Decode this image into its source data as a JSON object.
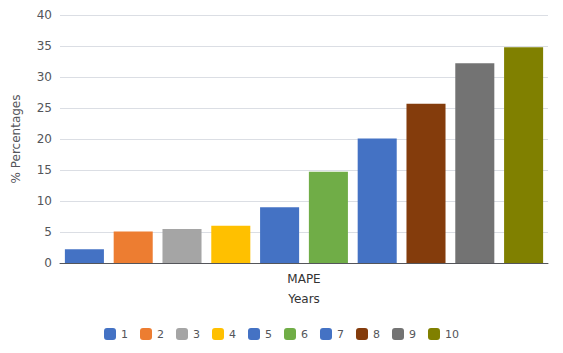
{
  "chart_data": {
    "type": "bar",
    "categories": [
      "1",
      "2",
      "3",
      "4",
      "5",
      "6",
      "7",
      "8",
      "9",
      "10"
    ],
    "values": [
      2.2,
      5.1,
      5.5,
      6.0,
      9.0,
      14.7,
      20.1,
      25.7,
      32.2,
      34.8
    ],
    "colors": [
      "#4472c4",
      "#ed7d31",
      "#a5a5a5",
      "#ffc000",
      "#4472c4",
      "#70ad47",
      "#4472c4",
      "#843c0c",
      "#737373",
      "#808000"
    ],
    "ylabel": "% Percentages",
    "xlabel": "MAPE",
    "annotations": [
      "Years"
    ],
    "ylim": [
      0,
      40
    ],
    "yticks": [
      0,
      5,
      10,
      15,
      20,
      25,
      30,
      35,
      40
    ],
    "grid": true,
    "legend": "bottom",
    "tick_labels": "y"
  }
}
